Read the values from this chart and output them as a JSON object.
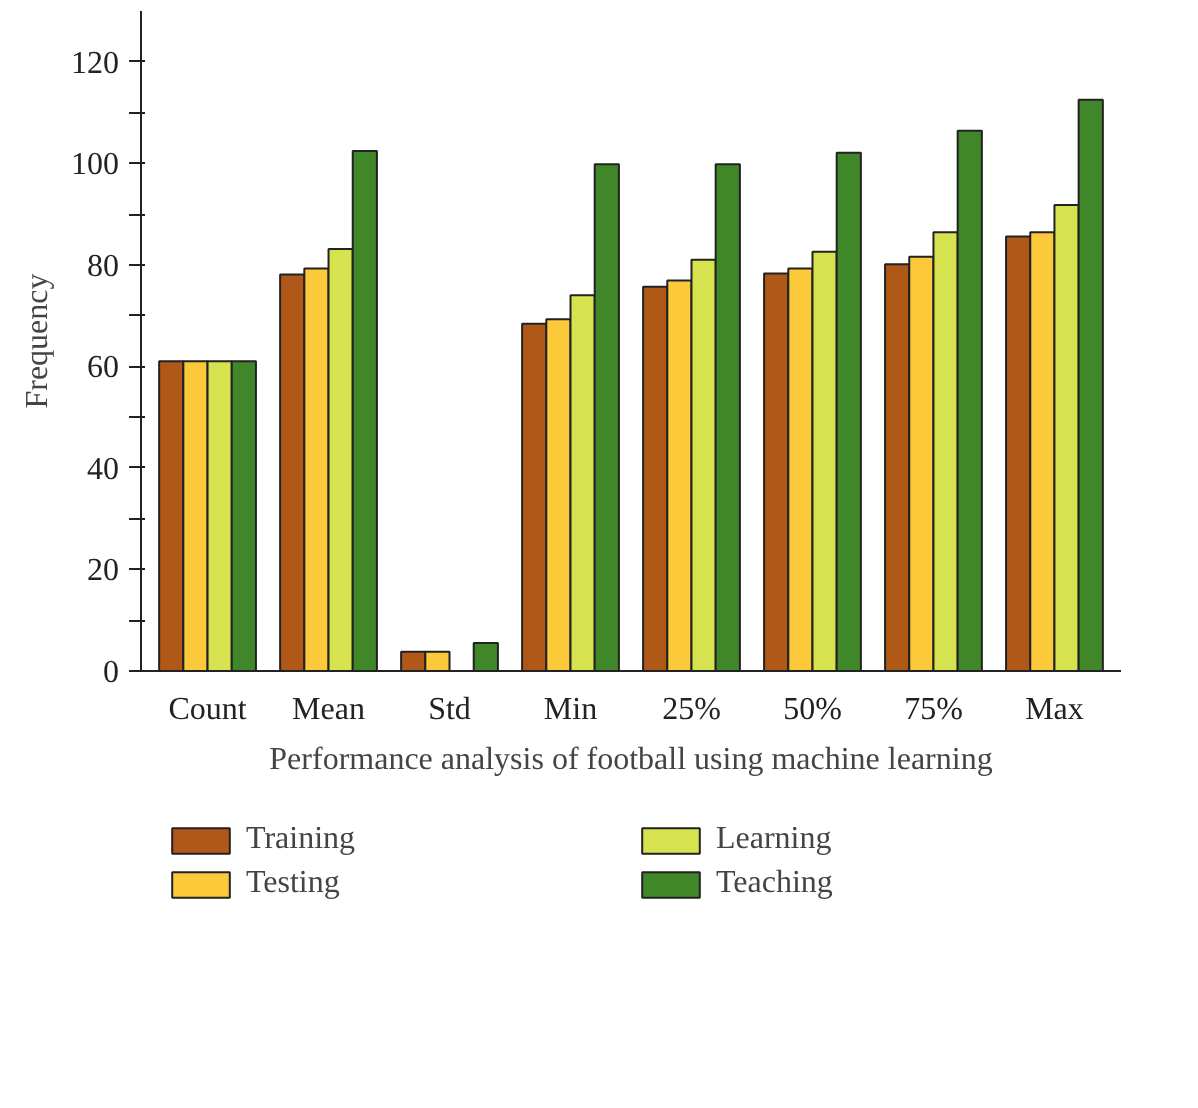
{
  "chart_data": {
    "type": "bar",
    "xlabel": "Performance analysis of football using machine learning",
    "ylabel": "Frequency",
    "categories": [
      "Count",
      "Mean",
      "Std",
      "Min",
      "25%",
      "50%",
      "75%",
      "Max"
    ],
    "series": [
      {
        "name": "Training",
        "color": "#b05818",
        "values": [
          61.0,
          78.1,
          3.8,
          68.4,
          75.7,
          78.3,
          80.1,
          85.6
        ]
      },
      {
        "name": "Testing",
        "color": "#fcc93a",
        "values": [
          61.0,
          79.3,
          3.8,
          69.3,
          76.9,
          79.3,
          81.6,
          86.4
        ]
      },
      {
        "name": "Learning",
        "color": "#d7e34e",
        "values": [
          61.0,
          83.1,
          null,
          74.0,
          81.0,
          82.6,
          86.4,
          91.8
        ]
      },
      {
        "name": "Teaching",
        "color": "#3f8729",
        "values": [
          61.0,
          102.4,
          5.5,
          99.8,
          99.8,
          102.1,
          106.4,
          112.5
        ]
      }
    ],
    "ylim": [
      0,
      130
    ],
    "yticks": [
      0,
      {
        "value": 10,
        "label": null
      },
      20,
      {
        "value": 30,
        "label": null
      },
      40,
      {
        "value": 50,
        "label": null
      },
      60,
      {
        "value": 70,
        "label": null
      },
      80,
      {
        "value": 90,
        "label": null
      },
      100,
      {
        "value": 110,
        "label": null
      },
      120
    ],
    "grid": false,
    "legend": "bottom"
  }
}
